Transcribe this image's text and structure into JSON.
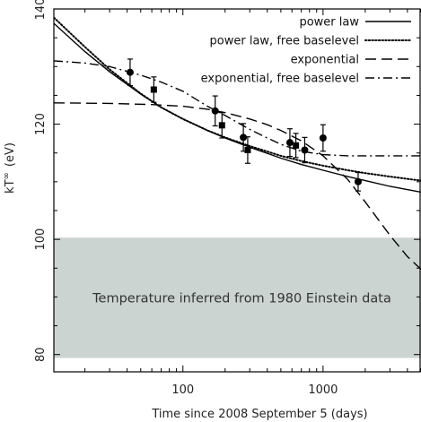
{
  "chart_data": {
    "type": "scatter",
    "xlabel": "Time since 2008 September 5 (days)",
    "ylabel_main": "kT",
    "ylabel_super": "∞",
    "ylabel_unit": "(eV)",
    "xscale": "log",
    "xlim": [
      12,
      5000
    ],
    "ylim": [
      77,
      140
    ],
    "x_ticks": [
      {
        "value": 100,
        "label": "100"
      },
      {
        "value": 1000,
        "label": "1000"
      }
    ],
    "y_ticks": [
      {
        "value": 80,
        "label": "80"
      },
      {
        "value": 100,
        "label": "100"
      },
      {
        "value": 120,
        "label": "120"
      },
      {
        "value": 140,
        "label": "140"
      }
    ],
    "band": {
      "y_range": [
        79.4,
        100.3
      ],
      "label": "Temperature inferred from 1980 Einstein data",
      "color": "#ccd4d1"
    },
    "series": [
      {
        "marker": "circle",
        "points": [
          {
            "x": 42,
            "y": 129.0,
            "err": 2.3
          },
          {
            "x": 170,
            "y": 122.3,
            "err": 2.6
          },
          {
            "x": 270,
            "y": 117.7,
            "err": 2.4
          },
          {
            "x": 580,
            "y": 116.8,
            "err": 2.4
          },
          {
            "x": 740,
            "y": 115.5,
            "err": 2.2
          },
          {
            "x": 1000,
            "y": 117.6,
            "err": 2.3
          },
          {
            "x": 1780,
            "y": 110.0,
            "err": 1.6
          }
        ]
      },
      {
        "marker": "square",
        "points": [
          {
            "x": 62,
            "y": 126.0,
            "err": 2.2
          },
          {
            "x": 190,
            "y": 119.8,
            "err": 2.2
          },
          {
            "x": 290,
            "y": 115.5,
            "err": 2.3
          },
          {
            "x": 640,
            "y": 116.3,
            "err": 2.1
          }
        ]
      }
    ],
    "models": [
      {
        "name": "power law",
        "style": "solid",
        "points": [
          [
            12,
            137.5
          ],
          [
            20,
            132.6
          ],
          [
            30,
            129.1
          ],
          [
            50,
            125.2
          ],
          [
            70,
            122.9
          ],
          [
            100,
            120.9
          ],
          [
            150,
            118.9
          ],
          [
            200,
            117.6
          ],
          [
            300,
            116.0
          ],
          [
            500,
            114.1
          ],
          [
            700,
            113.0
          ],
          [
            1000,
            112.0
          ],
          [
            1500,
            110.9
          ],
          [
            2000,
            110.2
          ],
          [
            3000,
            109.2
          ],
          [
            5000,
            108.2
          ]
        ]
      },
      {
        "name": "power law, free baselevel",
        "style": "dotted",
        "points": [
          [
            12,
            138.5
          ],
          [
            20,
            133.4
          ],
          [
            30,
            129.5
          ],
          [
            50,
            125.3
          ],
          [
            70,
            122.9
          ],
          [
            100,
            120.9
          ],
          [
            150,
            118.9
          ],
          [
            200,
            117.7
          ],
          [
            300,
            116.2
          ],
          [
            500,
            114.5
          ],
          [
            700,
            113.6
          ],
          [
            1000,
            112.8
          ],
          [
            1500,
            112.0
          ],
          [
            2000,
            111.5
          ],
          [
            3000,
            110.9
          ],
          [
            5000,
            110.2
          ]
        ]
      },
      {
        "name": "exponential",
        "style": "dashed",
        "points": [
          [
            12,
            123.7
          ],
          [
            30,
            123.6
          ],
          [
            60,
            123.4
          ],
          [
            100,
            123.1
          ],
          [
            150,
            122.6
          ],
          [
            200,
            122.0
          ],
          [
            300,
            120.9
          ],
          [
            400,
            119.9
          ],
          [
            500,
            118.9
          ],
          [
            700,
            117.1
          ],
          [
            1000,
            114.5
          ],
          [
            1500,
            110.4
          ],
          [
            2000,
            106.5
          ],
          [
            2500,
            103.3
          ],
          [
            3000,
            100.7
          ],
          [
            4000,
            97.0
          ],
          [
            5000,
            94.8
          ]
        ]
      },
      {
        "name": "exponential, free baselevel",
        "style": "dashdot",
        "points": [
          [
            12,
            131.0
          ],
          [
            20,
            130.6
          ],
          [
            30,
            130.0
          ],
          [
            50,
            128.5
          ],
          [
            70,
            127.3
          ],
          [
            100,
            125.7
          ],
          [
            150,
            123.1
          ],
          [
            200,
            121.5
          ],
          [
            300,
            119.1
          ],
          [
            400,
            117.6
          ],
          [
            500,
            116.5
          ],
          [
            700,
            115.3
          ],
          [
            1000,
            114.7
          ],
          [
            1500,
            114.5
          ],
          [
            2000,
            114.5
          ],
          [
            3000,
            114.5
          ],
          [
            5000,
            114.5
          ]
        ]
      }
    ],
    "legend": {
      "placement": "top-right",
      "entries": [
        {
          "label": "power law",
          "style": "solid"
        },
        {
          "label": "power law, free baselevel",
          "style": "dotted"
        },
        {
          "label": "exponential",
          "style": "dashed"
        },
        {
          "label": "exponential, free baselevel",
          "style": "dashdot"
        }
      ]
    }
  }
}
